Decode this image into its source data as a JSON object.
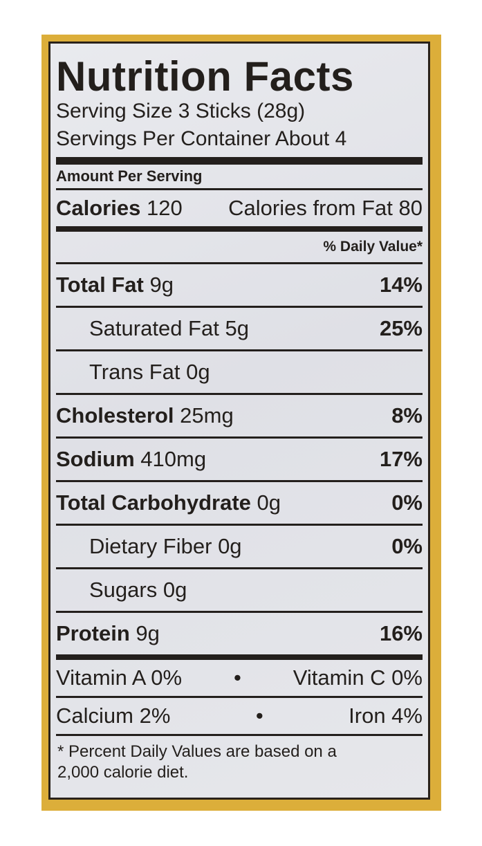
{
  "label": {
    "title": "Nutrition Facts",
    "serving_size": "Serving Size 3 Sticks (28g)",
    "servings_per_container": "Servings Per Container About 4",
    "amount_per_serving": "Amount Per Serving",
    "calories_label": "Calories",
    "calories_value": "120",
    "calories_from_fat": "Calories from Fat 80",
    "daily_value_header": "% Daily Value*",
    "nutrients": [
      {
        "name": "Total Fat",
        "amount": "9g",
        "dv": "14%",
        "bold": true
      },
      {
        "name": "Saturated Fat",
        "amount": "5g",
        "dv": "25%",
        "bold": false
      },
      {
        "name": "Trans Fat",
        "amount": "0g",
        "dv": "",
        "bold": false
      },
      {
        "name": "Cholesterol",
        "amount": "25mg",
        "dv": "8%",
        "bold": true
      },
      {
        "name": "Sodium",
        "amount": "410mg",
        "dv": "17%",
        "bold": true
      },
      {
        "name": "Total Carbohydrate",
        "amount": "0g",
        "dv": "0%",
        "bold": true
      },
      {
        "name": "Dietary Fiber",
        "amount": "0g",
        "dv": "0%",
        "bold": false
      },
      {
        "name": "Sugars",
        "amount": "0g",
        "dv": "",
        "bold": false
      },
      {
        "name": "Protein",
        "amount": "9g",
        "dv": "16%",
        "bold": true
      }
    ],
    "vitamins": [
      {
        "left": "Vitamin A 0%",
        "right": "Vitamin C 0%"
      },
      {
        "left": "Calcium 2%",
        "right": "Iron 4%"
      }
    ],
    "bullet": "•",
    "footnote_line1": "* Percent Daily Values are based on a",
    "footnote_line2": "2,000 calorie diet."
  },
  "colors": {
    "border": "#dcae3a",
    "text": "#231f1c",
    "panel": "#e4e5ea"
  }
}
